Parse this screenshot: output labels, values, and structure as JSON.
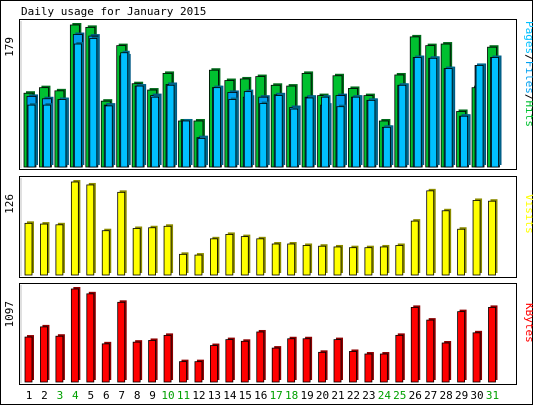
{
  "chart_data": [
    {
      "type": "bar",
      "title": "Daily usage for January 2015",
      "categories": [
        "1",
        "2",
        "3",
        "4",
        "5",
        "6",
        "7",
        "8",
        "9",
        "10",
        "11",
        "12",
        "13",
        "14",
        "15",
        "16",
        "17",
        "18",
        "19",
        "20",
        "21",
        "22",
        "23",
        "24",
        "25",
        "26",
        "27",
        "28",
        "29",
        "30",
        "31"
      ],
      "weekend_days": [
        "3",
        "4",
        "10",
        "11",
        "17",
        "18",
        "24",
        "25",
        "31"
      ],
      "weekday_label_color": "#000000",
      "weekend_label_color": "#00a000",
      "ymax_label": "179",
      "ylim": [
        0,
        179
      ],
      "right_label": [
        "Pages",
        "Files",
        "Hits"
      ],
      "series": [
        {
          "name": "Hits",
          "color": "#00c030",
          "values": [
            93,
            100,
            96,
            179,
            176,
            83,
            153,
            105,
            97,
            118,
            58,
            58,
            122,
            109,
            111,
            114,
            103,
            102,
            118,
            90,
            115,
            99,
            90,
            58,
            116,
            164,
            153,
            155,
            70,
            100,
            151
          ]
        },
        {
          "name": "Files",
          "color": "#00a0f0",
          "values": [
            89,
            86,
            85,
            167,
            165,
            78,
            140,
            102,
            90,
            104,
            58,
            37,
            100,
            94,
            88,
            88,
            91,
            75,
            88,
            78,
            90,
            88,
            84,
            50,
            103,
            138,
            137,
            124,
            64,
            128,
            138
          ]
        },
        {
          "name": "Pages",
          "color": "#00c0ff",
          "values": [
            78,
            78,
            85,
            155,
            162,
            77,
            144,
            102,
            88,
            103,
            58,
            36,
            100,
            85,
            95,
            80,
            90,
            73,
            87,
            88,
            76,
            88,
            84,
            50,
            103,
            138,
            137,
            124,
            64,
            128,
            138
          ]
        }
      ]
    },
    {
      "type": "bar",
      "ymax_label": "126",
      "ylim": [
        0,
        126
      ],
      "right_label": "Visits",
      "series": [
        {
          "name": "Visits",
          "color": "#ffff00",
          "values": [
            70,
            69,
            68,
            126,
            122,
            60,
            112,
            63,
            64,
            66,
            28,
            27,
            49,
            55,
            52,
            49,
            42,
            42,
            40,
            39,
            38,
            37,
            37,
            38,
            40,
            73,
            114,
            87,
            62,
            101,
            100
          ]
        }
      ]
    },
    {
      "type": "bar",
      "ymax_label": "1097",
      "ylim": [
        0,
        1097
      ],
      "right_label": "KBytes",
      "series": [
        {
          "name": "KBytes",
          "color": "#ff0000",
          "values": [
            530,
            650,
            540,
            1097,
            1040,
            450,
            940,
            470,
            490,
            550,
            240,
            240,
            430,
            500,
            480,
            590,
            400,
            510,
            510,
            350,
            500,
            360,
            330,
            330,
            550,
            880,
            730,
            460,
            830,
            580,
            880
          ]
        }
      ]
    }
  ]
}
